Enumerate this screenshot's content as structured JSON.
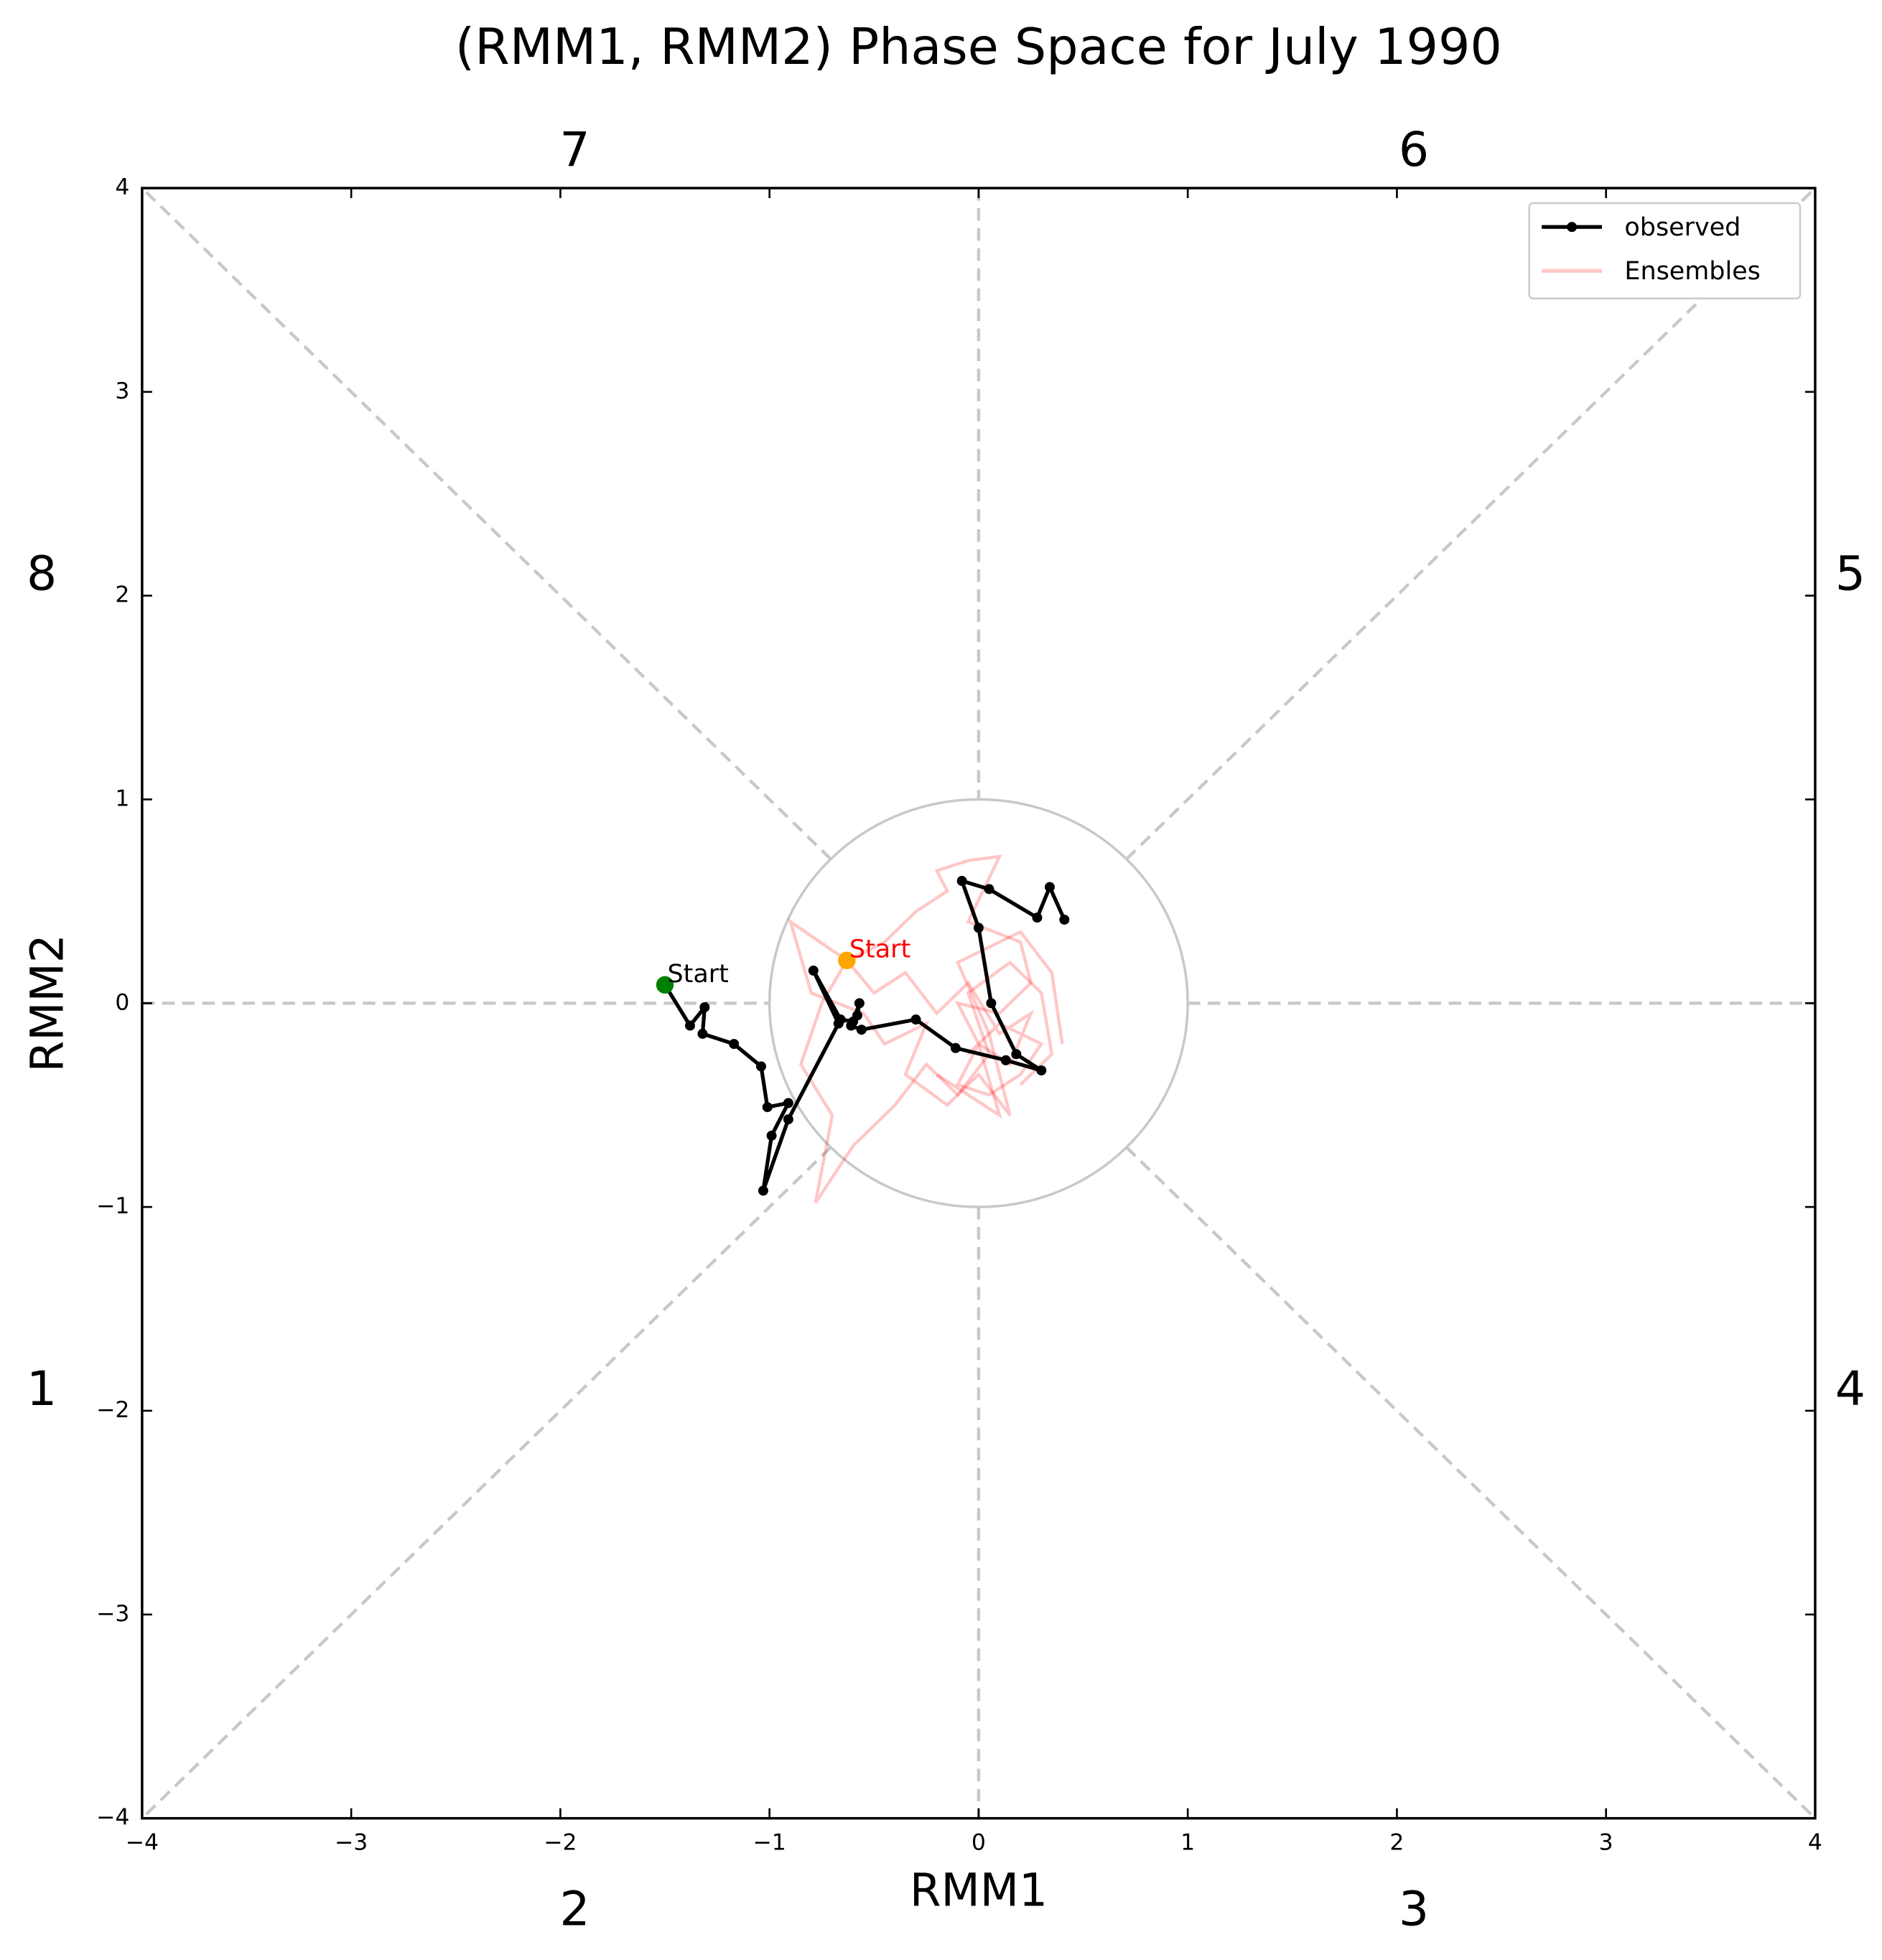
{
  "chart_data": {
    "type": "phase",
    "title": "(RMM1, RMM2) Phase Space for July 1990",
    "x_label": "RMM1",
    "y_label": "RMM2",
    "xlim": [
      -4,
      4
    ],
    "ylim": [
      -4,
      4
    ],
    "xticks": [
      {
        "value": -4,
        "label": "−4"
      },
      {
        "value": -3,
        "label": "−3"
      },
      {
        "value": -2,
        "label": "−2"
      },
      {
        "value": -1,
        "label": "−1"
      },
      0,
      1,
      2,
      3,
      4
    ],
    "yticks": [
      {
        "value": -4,
        "label": "−4"
      },
      {
        "value": -3,
        "label": "−3"
      },
      {
        "value": -2,
        "label": "−2"
      },
      {
        "value": -1,
        "label": "−1"
      },
      0,
      1,
      2,
      3,
      4
    ],
    "phase_labels": [
      "1",
      "2",
      "3",
      "4",
      "5",
      "6",
      "7",
      "8"
    ],
    "legend_position": "upper right",
    "series": [
      {
        "name": "observed",
        "color": "#000000",
        "start_color": "green",
        "start_label": "Start",
        "start_label_color": "black",
        "x": [
          -1.5,
          -1.38,
          -1.31,
          -1.32,
          -1.17,
          -1.04,
          -1.01,
          -0.91,
          -0.99,
          -1.03,
          -0.91,
          -0.67,
          -0.79,
          -0.66,
          -0.6,
          -0.57,
          -0.58,
          -0.61,
          -0.56,
          -0.3,
          -0.11,
          0.13,
          0.3,
          0.18,
          0.06,
          0.0,
          -0.08,
          0.05,
          0.28,
          0.34,
          0.41
        ],
        "y": [
          0.09,
          -0.11,
          -0.02,
          -0.15,
          -0.2,
          -0.31,
          -0.51,
          -0.49,
          -0.65,
          -0.92,
          -0.57,
          -0.1,
          0.16,
          -0.08,
          -0.09,
          0.0,
          -0.06,
          -0.11,
          -0.13,
          -0.08,
          -0.22,
          -0.28,
          -0.33,
          -0.25,
          0.0,
          0.37,
          0.6,
          0.56,
          0.42,
          0.57,
          0.41
        ]
      },
      {
        "name": "Ensembles",
        "color": "#ff0000",
        "start_color": "orange",
        "start_label": "Start",
        "start_label_color": "red",
        "members": [
          {
            "x": [
              -0.63,
              -0.5,
              -0.35,
              -0.2,
              -0.05,
              0.1,
              0.25,
              0.15,
              0.0,
              -0.1,
              0.05,
              0.2,
              0.3,
              0.1,
              -0.05
            ],
            "y": [
              0.21,
              0.05,
              0.15,
              -0.05,
              0.1,
              -0.15,
              -0.05,
              -0.3,
              -0.2,
              -0.4,
              -0.45,
              -0.35,
              -0.2,
              -0.1,
              -0.25
            ]
          },
          {
            "x": [
              -0.63,
              -0.75,
              -0.85,
              -0.7,
              -0.78,
              -0.6,
              -0.4,
              -0.25,
              -0.1,
              0.05,
              -0.05,
              0.15,
              0.3,
              0.35,
              0.2
            ],
            "y": [
              0.21,
              0.0,
              -0.3,
              -0.55,
              -0.98,
              -0.7,
              -0.5,
              -0.3,
              -0.45,
              -0.25,
              0.05,
              0.2,
              0.05,
              -0.25,
              -0.4
            ]
          },
          {
            "x": [
              -0.63,
              -0.45,
              -0.3,
              -0.15,
              -0.2,
              -0.05,
              0.1,
              -0.05,
              0.2,
              0.25,
              0.1,
              -0.1,
              0.0,
              0.1,
              -0.2
            ],
            "y": [
              0.21,
              0.3,
              0.45,
              0.55,
              0.65,
              0.7,
              0.72,
              0.4,
              0.3,
              0.1,
              -0.05,
              0.0,
              -0.2,
              -0.55,
              -0.35
            ]
          },
          {
            "x": [
              -0.63,
              -0.9,
              -0.8,
              -0.55,
              -0.45,
              -0.25,
              -0.35,
              -0.15,
              0.0,
              0.15,
              0.05,
              -0.1,
              0.2,
              0.35,
              0.4
            ],
            "y": [
              0.21,
              0.4,
              0.05,
              -0.05,
              -0.2,
              -0.1,
              -0.35,
              -0.5,
              -0.35,
              -0.55,
              -0.15,
              0.2,
              0.35,
              0.15,
              -0.2
            ]
          }
        ]
      }
    ]
  }
}
